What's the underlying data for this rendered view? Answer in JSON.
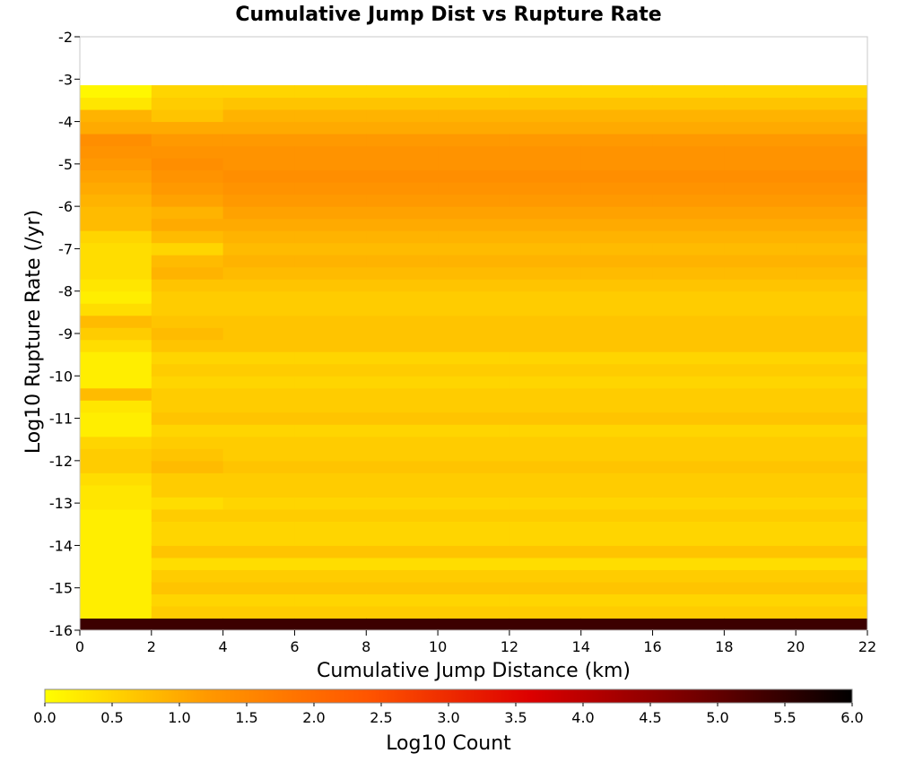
{
  "chart_data": {
    "type": "heatmap",
    "title": "Cumulative Jump Dist vs Rupture Rate",
    "xlabel": "Cumulative Jump Distance (km)",
    "ylabel": "Log10 Rupture Rate (/yr)",
    "xlim": [
      0,
      22
    ],
    "ylim": [
      -16,
      -2
    ],
    "x_ticks": [
      "0",
      "2",
      "4",
      "6",
      "8",
      "10",
      "12",
      "14",
      "16",
      "18",
      "20",
      "22"
    ],
    "y_ticks": [
      "-2",
      "-3",
      "-4",
      "-5",
      "-6",
      "-7",
      "-8",
      "-9",
      "-10",
      "-11",
      "-12",
      "-13",
      "-14",
      "-15",
      "-16"
    ],
    "x_bin_edges": [
      0,
      2,
      4,
      6,
      8,
      10,
      12,
      14,
      16,
      18,
      20,
      22
    ],
    "y_bin_start": -16,
    "y_bin_width": 0.2857,
    "colorbar": {
      "label": "Log10 Count",
      "range": [
        0.0,
        6.0
      ],
      "ticks": [
        "0.0",
        "0.5",
        "1.0",
        "1.5",
        "2.0",
        "2.5",
        "3.0",
        "3.5",
        "4.0",
        "4.5",
        "5.0",
        "5.5",
        "6.0"
      ],
      "colors": [
        "#ffff00",
        "#ff9900",
        "#ff5500",
        "#dd0000",
        "#770000",
        "#000000"
      ]
    },
    "values_note": "columns = x bins (left to right), rows = y bins from -16 upward; null = empty bin",
    "values": [
      [
        5.4,
        0.2,
        0.2,
        0.2,
        0.2,
        0.2,
        0.2,
        0.2,
        0.2,
        0.2,
        0.3,
        0.3,
        0.4,
        0.6,
        0.6,
        0.5,
        0.2,
        0.2,
        0.3,
        0.8,
        0.2,
        0.2,
        0.2,
        0.4,
        0.6,
        0.8,
        0.4,
        0.2,
        0.3,
        0.4,
        0.4,
        0.4,
        0.5,
        0.8,
        0.8,
        0.9,
        1.0,
        1.1,
        1.2,
        1.3,
        1.4,
        1.0,
        0.9,
        0.3,
        0.1,
        null,
        null,
        null,
        null
      ],
      [
        5.4,
        0.6,
        0.5,
        0.7,
        0.6,
        0.4,
        0.7,
        0.5,
        0.5,
        0.6,
        0.4,
        0.6,
        0.6,
        0.8,
        0.7,
        0.6,
        0.5,
        0.7,
        0.6,
        0.6,
        0.5,
        0.6,
        0.5,
        0.7,
        0.8,
        0.7,
        0.6,
        0.6,
        0.7,
        0.9,
        0.8,
        0.5,
        0.8,
        1.0,
        0.9,
        1.1,
        1.2,
        1.3,
        1.4,
        1.3,
        1.2,
        1.0,
        0.7,
        0.6,
        0.5,
        null,
        null,
        null,
        null
      ],
      [
        5.4,
        0.6,
        0.5,
        0.7,
        0.6,
        0.4,
        0.7,
        0.5,
        0.5,
        0.6,
        0.5,
        0.6,
        0.6,
        0.7,
        0.6,
        0.6,
        0.5,
        0.7,
        0.6,
        0.6,
        0.5,
        0.6,
        0.5,
        0.7,
        0.7,
        0.7,
        0.6,
        0.6,
        0.7,
        0.8,
        0.9,
        0.8,
        0.9,
        1.0,
        1.1,
        1.2,
        1.3,
        1.4,
        1.3,
        1.3,
        1.2,
        1.0,
        0.9,
        0.7,
        0.5,
        null,
        null,
        null,
        null
      ],
      [
        5.4,
        0.6,
        0.5,
        0.7,
        0.6,
        0.4,
        0.7,
        0.5,
        0.5,
        0.6,
        0.5,
        0.6,
        0.6,
        0.7,
        0.6,
        0.6,
        0.5,
        0.7,
        0.6,
        0.6,
        0.5,
        0.6,
        0.5,
        0.7,
        0.7,
        0.7,
        0.6,
        0.6,
        0.7,
        0.8,
        0.9,
        0.8,
        0.9,
        1.0,
        1.1,
        1.2,
        1.3,
        1.4,
        1.3,
        1.3,
        1.2,
        1.0,
        0.9,
        0.7,
        0.5,
        null,
        null,
        null,
        null
      ],
      [
        5.4,
        0.6,
        0.5,
        0.7,
        0.6,
        0.4,
        0.7,
        0.5,
        0.5,
        0.6,
        0.5,
        0.6,
        0.6,
        0.7,
        0.6,
        0.6,
        0.5,
        0.7,
        0.6,
        0.6,
        0.5,
        0.6,
        0.5,
        0.7,
        0.7,
        0.7,
        0.6,
        0.6,
        0.7,
        0.8,
        0.9,
        0.8,
        0.9,
        1.0,
        1.1,
        1.2,
        1.3,
        1.4,
        1.3,
        1.3,
        1.2,
        1.0,
        0.9,
        0.7,
        0.5,
        null,
        null,
        null,
        null
      ],
      [
        5.4,
        0.6,
        0.5,
        0.7,
        0.6,
        0.4,
        0.7,
        0.5,
        0.5,
        0.6,
        0.5,
        0.6,
        0.6,
        0.7,
        0.6,
        0.6,
        0.5,
        0.7,
        0.6,
        0.6,
        0.5,
        0.6,
        0.5,
        0.7,
        0.7,
        0.7,
        0.6,
        0.6,
        0.7,
        0.8,
        0.9,
        0.8,
        0.9,
        1.0,
        1.1,
        1.2,
        1.3,
        1.4,
        1.3,
        1.3,
        1.2,
        1.0,
        0.9,
        0.7,
        0.5,
        null,
        null,
        null,
        null
      ],
      [
        5.4,
        0.6,
        0.5,
        0.7,
        0.6,
        0.4,
        0.7,
        0.5,
        0.5,
        0.6,
        0.5,
        0.6,
        0.6,
        0.7,
        0.6,
        0.6,
        0.5,
        0.7,
        0.6,
        0.6,
        0.5,
        0.6,
        0.5,
        0.7,
        0.7,
        0.7,
        0.6,
        0.6,
        0.7,
        0.8,
        0.9,
        0.8,
        0.9,
        1.0,
        1.1,
        1.2,
        1.3,
        1.4,
        1.3,
        1.3,
        1.2,
        1.0,
        0.9,
        0.7,
        0.5,
        null,
        null,
        null,
        null
      ],
      [
        5.4,
        0.6,
        0.5,
        0.7,
        0.6,
        0.4,
        0.7,
        0.5,
        0.5,
        0.6,
        0.5,
        0.6,
        0.6,
        0.7,
        0.6,
        0.6,
        0.5,
        0.7,
        0.6,
        0.6,
        0.5,
        0.6,
        0.5,
        0.7,
        0.7,
        0.7,
        0.6,
        0.6,
        0.7,
        0.8,
        0.9,
        0.8,
        0.9,
        1.0,
        1.1,
        1.2,
        1.3,
        1.4,
        1.3,
        1.3,
        1.2,
        1.0,
        0.9,
        0.7,
        0.5,
        null,
        null,
        null,
        null
      ],
      [
        5.4,
        0.6,
        0.5,
        0.7,
        0.6,
        0.4,
        0.7,
        0.5,
        0.5,
        0.6,
        0.5,
        0.6,
        0.6,
        0.7,
        0.6,
        0.6,
        0.5,
        0.7,
        0.6,
        0.6,
        0.5,
        0.6,
        0.5,
        0.7,
        0.7,
        0.7,
        0.6,
        0.6,
        0.7,
        0.8,
        0.9,
        0.8,
        0.9,
        1.0,
        1.1,
        1.2,
        1.3,
        1.4,
        1.3,
        1.3,
        1.2,
        1.0,
        0.9,
        0.7,
        0.5,
        null,
        null,
        null,
        null
      ],
      [
        5.4,
        0.6,
        0.5,
        0.7,
        0.6,
        0.4,
        0.7,
        0.5,
        0.5,
        0.6,
        0.5,
        0.6,
        0.6,
        0.7,
        0.6,
        0.6,
        0.5,
        0.7,
        0.6,
        0.6,
        0.5,
        0.6,
        0.5,
        0.7,
        0.7,
        0.7,
        0.6,
        0.6,
        0.7,
        0.8,
        0.9,
        0.8,
        0.9,
        1.0,
        1.1,
        1.2,
        1.3,
        1.4,
        1.3,
        1.3,
        1.2,
        1.0,
        0.9,
        0.7,
        0.5,
        null,
        null,
        null,
        null
      ],
      [
        5.4,
        0.6,
        0.5,
        0.7,
        0.6,
        0.4,
        0.7,
        0.5,
        0.5,
        0.6,
        0.5,
        0.6,
        0.6,
        0.7,
        0.6,
        0.6,
        0.5,
        0.7,
        0.6,
        0.6,
        0.5,
        0.6,
        0.5,
        0.7,
        0.7,
        0.7,
        0.6,
        0.6,
        0.7,
        0.8,
        0.9,
        0.8,
        0.9,
        1.0,
        1.1,
        1.2,
        1.3,
        1.4,
        1.3,
        1.3,
        1.2,
        1.0,
        0.9,
        0.7,
        0.5,
        null,
        null,
        null,
        null
      ]
    ]
  }
}
